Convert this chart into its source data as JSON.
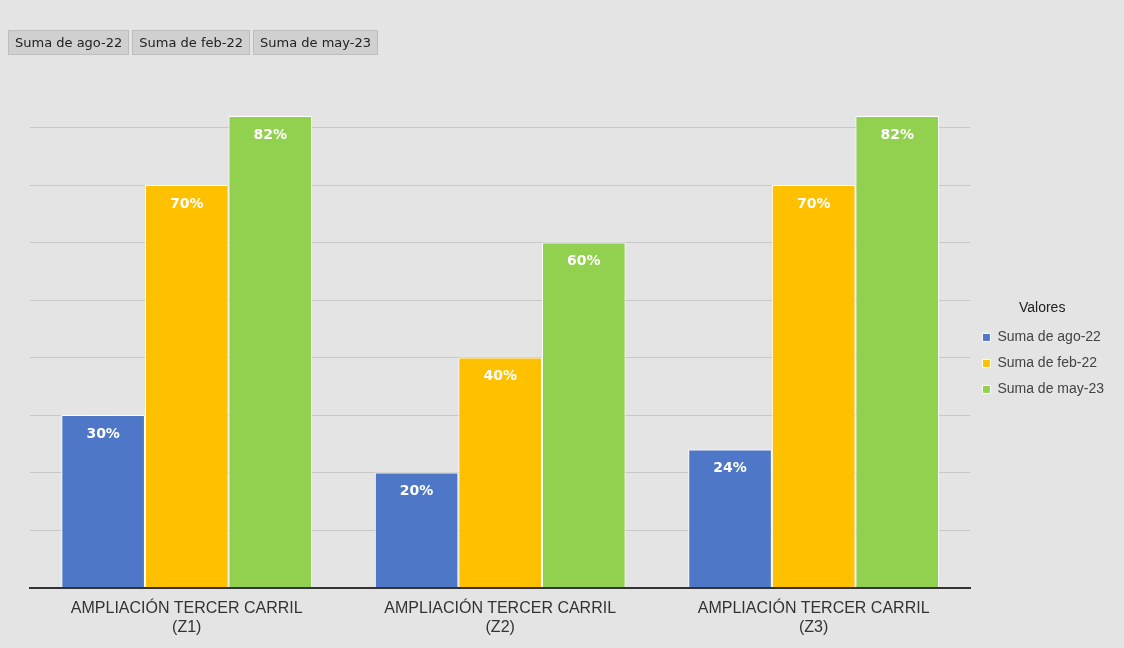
{
  "chart_data": {
    "type": "bar",
    "categories": [
      "AMPLIACIÓN TERCER CARRIL (Z1)",
      "AMPLIACIÓN TERCER CARRIL (Z2)",
      "AMPLIACIÓN TERCER CARRIL (Z3)"
    ],
    "series": [
      {
        "name": "Suma de ago-22",
        "color": "#4f77c8",
        "values": [
          30,
          20,
          24
        ],
        "value_labels": [
          "30%",
          "20%",
          "24%"
        ]
      },
      {
        "name": "Suma de feb-22",
        "color": "#ffc000",
        "values": [
          70,
          40,
          70
        ],
        "value_labels": [
          "70%",
          "40%",
          "70%"
        ]
      },
      {
        "name": "Suma de may-23",
        "color": "#92d050",
        "values": [
          82,
          60,
          82
        ],
        "value_labels": [
          "82%",
          "60%",
          "82%"
        ]
      }
    ],
    "yticks": [
      {
        "value": 0,
        "label": null
      },
      {
        "value": 10,
        "label": null
      },
      {
        "value": 20,
        "label": null
      },
      {
        "value": 30,
        "label": null
      },
      {
        "value": 40,
        "label": null
      },
      {
        "value": 50,
        "label": null
      },
      {
        "value": 60,
        "label": null
      },
      {
        "value": 70,
        "label": null
      },
      {
        "value": 80,
        "label": null
      }
    ],
    "tick_labels": "x",
    "grid": "y",
    "legend": "right",
    "legend_title": "Valores",
    "annotations": [
      "Suma de ago-22",
      "Suma de feb-22",
      "Suma de may-23"
    ]
  }
}
